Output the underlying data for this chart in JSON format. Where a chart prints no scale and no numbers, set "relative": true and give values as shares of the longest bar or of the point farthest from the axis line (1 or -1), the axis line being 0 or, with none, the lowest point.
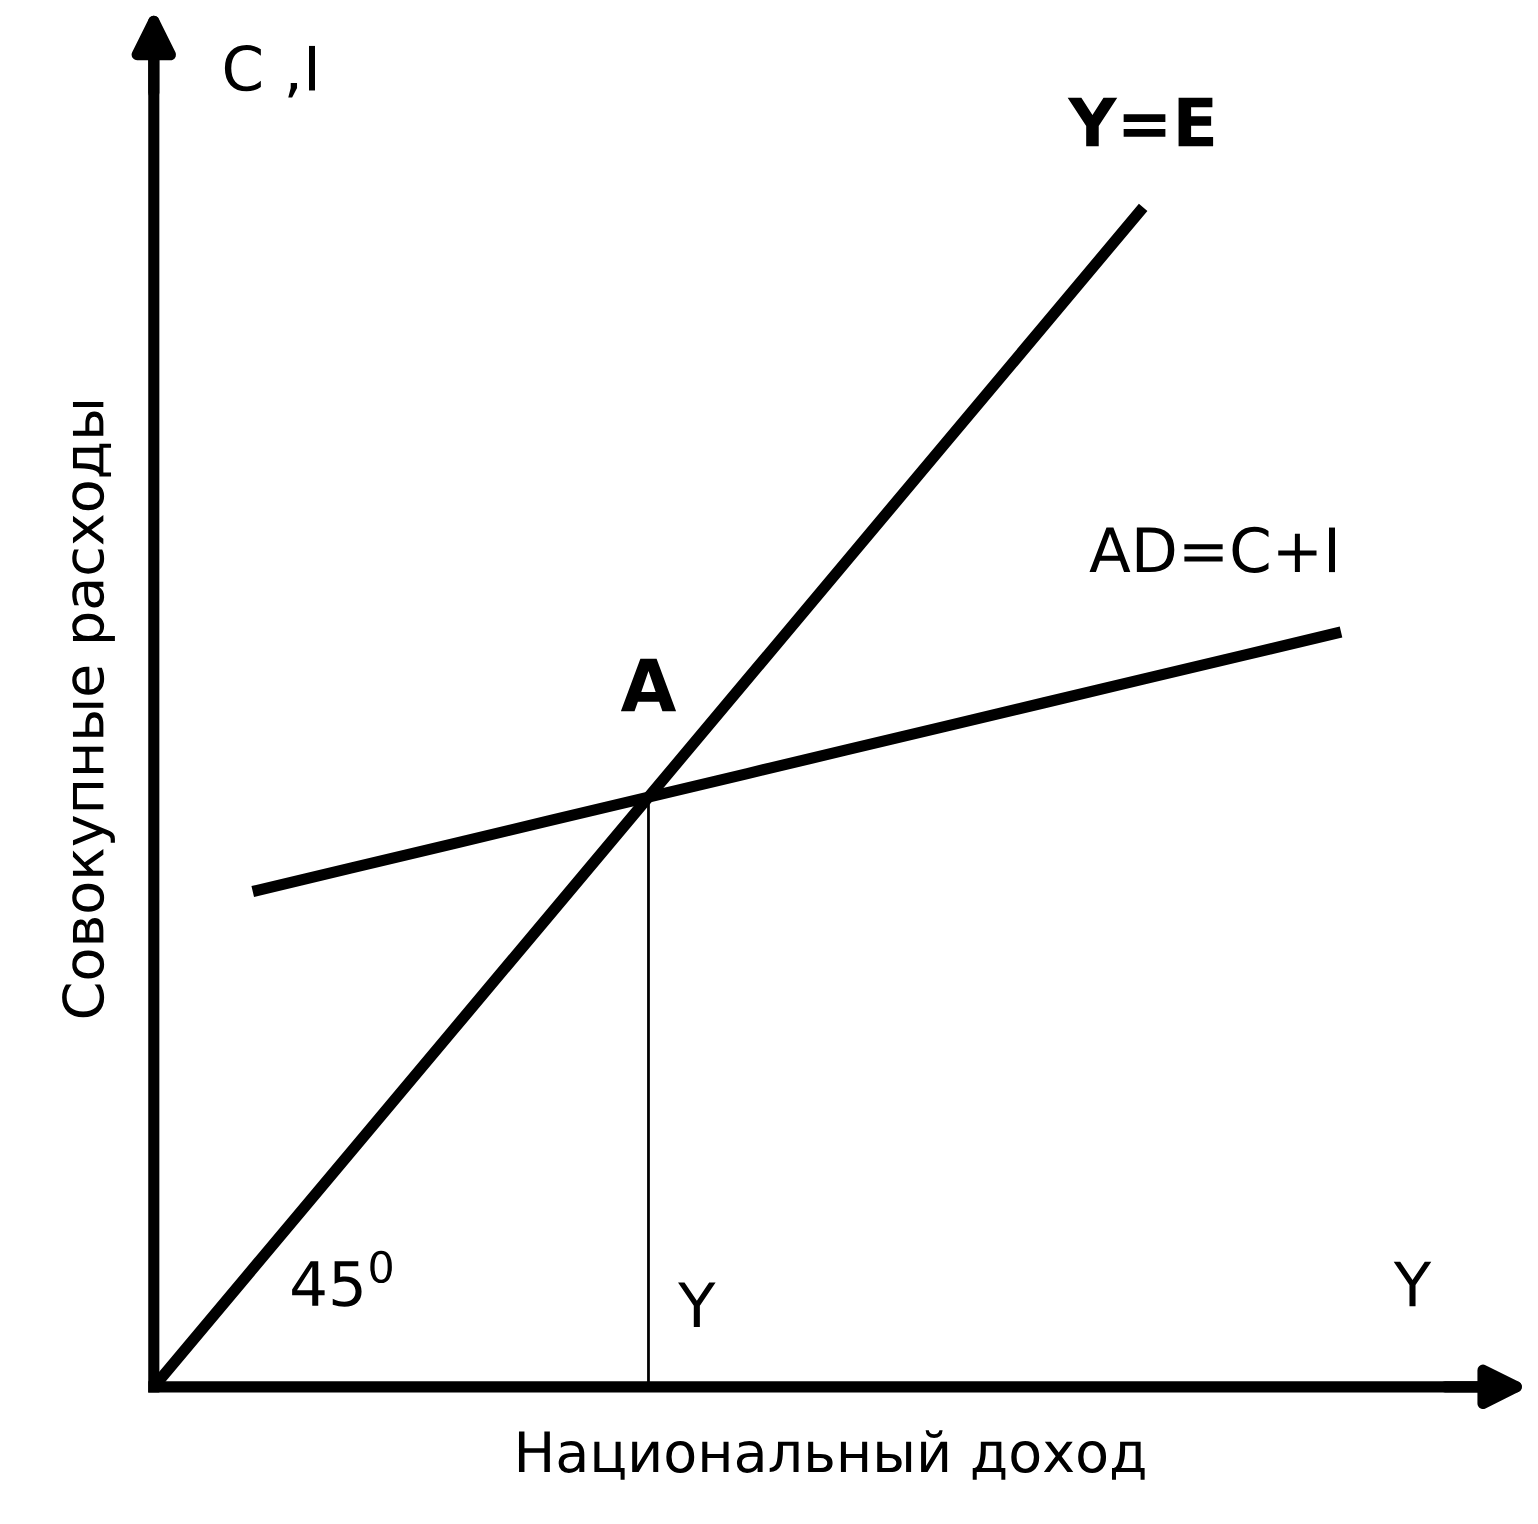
{
  "chart_data": {
    "type": "line",
    "relative": true,
    "xlabel": "Национальный доход",
    "ylabel": "Совокупные расходы",
    "annotations": [
      "A",
      "Y",
      "C ,I",
      "Y",
      "45$^{0}$"
    ],
    "categories": [
      null,
      null,
      null,
      null,
      null,
      null,
      null,
      null,
      null,
      null,
      null,
      null,
      null
    ],
    "series": [
      {
        "name": "Y=E",
        "color": "#000000",
        "values": [
          0,
          0.1,
          0.2,
          0.3,
          0.4,
          0.5,
          0.6,
          0.7,
          0.8,
          0.9,
          1.0,
          null,
          null
        ]
      },
      {
        "name": "AD=C+I",
        "color": "#000000",
        "values": [
          null,
          0.42,
          0.44,
          0.46,
          0.48,
          0.5,
          0.52,
          0.54,
          0.56,
          0.58,
          0.6,
          0.62,
          0.64
        ]
      }
    ],
    "grid": false,
    "legend": false,
    "marker": "none",
    "line_style": "solid"
  }
}
